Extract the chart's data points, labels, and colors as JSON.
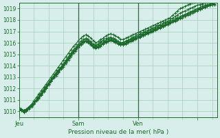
{
  "xlabel": "Pression niveau de la mer( hPa )",
  "ylim": [
    1009.5,
    1019.5
  ],
  "xlim": [
    0,
    80
  ],
  "ytick_positions": [
    1010,
    1011,
    1012,
    1013,
    1014,
    1015,
    1016,
    1017,
    1018,
    1019
  ],
  "xtick_positions": [
    0,
    24,
    48,
    72
  ],
  "xtick_labels": [
    "Jeu",
    "Sam",
    "Ven",
    ""
  ],
  "day_lines": [
    24,
    48
  ],
  "bg_color": "#d8eeea",
  "grid_color": "#a8ccbb",
  "line_color": "#1a6b2a",
  "line_width": 0.8,
  "marker_size": 2.5,
  "series": [
    [
      1010.2,
      1010.1,
      1010.0,
      1010.1,
      1010.3,
      1010.5,
      1010.7,
      1011.0,
      1011.3,
      1011.6,
      1011.9,
      1012.2,
      1012.5,
      1012.7,
      1013.0,
      1013.3,
      1013.6,
      1013.8,
      1014.1,
      1014.4,
      1014.7,
      1015.0,
      1015.3,
      1015.5,
      1015.8,
      1016.0,
      1016.2,
      1016.3,
      1016.2,
      1016.0,
      1015.8,
      1015.7,
      1015.8,
      1016.0,
      1016.1,
      1016.2,
      1016.3,
      1016.4,
      1016.3,
      1016.2,
      1016.1,
      1016.0,
      1016.0,
      1016.1,
      1016.2,
      1016.3,
      1016.4,
      1016.5,
      1016.6,
      1016.7,
      1016.8,
      1016.9,
      1017.0,
      1017.1,
      1017.2,
      1017.3,
      1017.4,
      1017.5,
      1017.6,
      1017.7,
      1017.8,
      1017.9,
      1018.0,
      1018.1,
      1018.2,
      1018.3,
      1018.4,
      1018.5,
      1018.6,
      1018.7,
      1018.8,
      1018.9,
      1019.0,
      1019.1,
      1019.2,
      1019.3,
      1019.35,
      1019.4,
      1019.45,
      1019.5
    ],
    [
      1010.2,
      1010.1,
      1010.0,
      1010.1,
      1010.3,
      1010.5,
      1010.7,
      1011.0,
      1011.2,
      1011.5,
      1011.8,
      1012.1,
      1012.4,
      1012.7,
      1013.0,
      1013.2,
      1013.5,
      1013.8,
      1014.0,
      1014.3,
      1014.6,
      1014.9,
      1015.2,
      1015.4,
      1015.7,
      1015.9,
      1016.1,
      1016.2,
      1016.1,
      1015.9,
      1015.7,
      1015.6,
      1015.7,
      1015.8,
      1016.0,
      1016.1,
      1016.2,
      1016.3,
      1016.2,
      1016.1,
      1016.0,
      1015.9,
      1015.9,
      1016.0,
      1016.1,
      1016.2,
      1016.3,
      1016.4,
      1016.5,
      1016.6,
      1016.7,
      1016.8,
      1016.9,
      1017.0,
      1017.1,
      1017.2,
      1017.3,
      1017.4,
      1017.5,
      1017.6,
      1017.7,
      1017.8,
      1017.9,
      1018.0,
      1018.1,
      1018.2,
      1018.3,
      1018.4,
      1018.5,
      1018.6,
      1018.7,
      1018.8,
      1018.9,
      1019.0,
      1019.1,
      1019.2,
      1019.25,
      1019.3,
      1019.35,
      1019.4
    ],
    [
      1010.1,
      1010.05,
      1009.9,
      1010.0,
      1010.2,
      1010.4,
      1010.6,
      1010.9,
      1011.1,
      1011.4,
      1011.7,
      1012.0,
      1012.3,
      1012.6,
      1012.9,
      1013.1,
      1013.4,
      1013.7,
      1013.9,
      1014.2,
      1014.5,
      1014.8,
      1015.1,
      1015.3,
      1015.6,
      1015.8,
      1016.0,
      1016.1,
      1016.0,
      1015.8,
      1015.6,
      1015.5,
      1015.6,
      1015.7,
      1015.9,
      1016.0,
      1016.1,
      1016.2,
      1016.1,
      1016.0,
      1015.9,
      1015.8,
      1015.8,
      1015.9,
      1016.0,
      1016.1,
      1016.2,
      1016.3,
      1016.4,
      1016.5,
      1016.6,
      1016.7,
      1016.8,
      1016.9,
      1017.0,
      1017.1,
      1017.2,
      1017.3,
      1017.4,
      1017.5,
      1017.6,
      1017.7,
      1017.8,
      1017.9,
      1018.0,
      1018.1,
      1018.2,
      1018.3,
      1018.4,
      1018.5,
      1018.6,
      1018.7,
      1018.8,
      1018.9,
      1019.0,
      1019.1,
      1019.2,
      1019.25,
      1019.3,
      1019.35
    ],
    [
      1010.2,
      1010.1,
      1010.05,
      1010.15,
      1010.3,
      1010.5,
      1010.75,
      1011.0,
      1011.3,
      1011.6,
      1011.9,
      1012.2,
      1012.5,
      1012.8,
      1013.1,
      1013.4,
      1013.65,
      1013.9,
      1014.2,
      1014.5,
      1014.8,
      1015.1,
      1015.4,
      1015.6,
      1015.9,
      1016.15,
      1016.3,
      1016.4,
      1016.3,
      1016.1,
      1015.9,
      1015.8,
      1015.9,
      1016.1,
      1016.25,
      1016.35,
      1016.45,
      1016.5,
      1016.4,
      1016.3,
      1016.15,
      1016.0,
      1016.05,
      1016.15,
      1016.25,
      1016.35,
      1016.5,
      1016.6,
      1016.7,
      1016.8,
      1016.9,
      1017.0,
      1017.1,
      1017.2,
      1017.3,
      1017.4,
      1017.5,
      1017.6,
      1017.7,
      1017.8,
      1017.9,
      1018.0,
      1018.15,
      1018.3,
      1018.45,
      1018.6,
      1018.7,
      1018.8,
      1018.9,
      1019.0,
      1019.1,
      1019.2,
      1019.3,
      1019.35,
      1019.4,
      1019.5,
      1019.55,
      1019.6,
      1019.65,
      1019.7
    ],
    [
      1010.15,
      1010.05,
      1009.95,
      1010.05,
      1010.25,
      1010.45,
      1010.65,
      1010.95,
      1011.15,
      1011.45,
      1011.75,
      1012.05,
      1012.35,
      1012.65,
      1012.95,
      1013.2,
      1013.45,
      1013.75,
      1014.0,
      1014.3,
      1014.6,
      1014.9,
      1015.2,
      1015.4,
      1015.65,
      1015.9,
      1016.05,
      1016.15,
      1016.05,
      1015.85,
      1015.65,
      1015.55,
      1015.65,
      1015.8,
      1015.95,
      1016.05,
      1016.15,
      1016.25,
      1016.15,
      1016.05,
      1015.95,
      1015.85,
      1015.85,
      1015.95,
      1016.05,
      1016.15,
      1016.25,
      1016.35,
      1016.45,
      1016.55,
      1016.65,
      1016.75,
      1016.85,
      1016.95,
      1017.05,
      1017.15,
      1017.25,
      1017.35,
      1017.45,
      1017.55,
      1017.65,
      1017.75,
      1017.85,
      1017.95,
      1018.1,
      1018.2,
      1018.3,
      1018.4,
      1018.5,
      1018.6,
      1018.7,
      1018.8,
      1018.9,
      1018.95,
      1019.05,
      1019.15,
      1019.2,
      1019.25,
      1019.3,
      1019.35
    ],
    [
      1010.3,
      1010.2,
      1010.1,
      1010.2,
      1010.4,
      1010.6,
      1010.9,
      1011.2,
      1011.5,
      1011.8,
      1012.1,
      1012.4,
      1012.7,
      1013.0,
      1013.3,
      1013.6,
      1013.9,
      1014.2,
      1014.5,
      1014.8,
      1015.1,
      1015.4,
      1015.7,
      1015.9,
      1016.2,
      1016.4,
      1016.6,
      1016.7,
      1016.6,
      1016.4,
      1016.2,
      1016.0,
      1016.1,
      1016.3,
      1016.4,
      1016.6,
      1016.7,
      1016.8,
      1016.7,
      1016.6,
      1016.5,
      1016.3,
      1016.3,
      1016.4,
      1016.5,
      1016.6,
      1016.7,
      1016.8,
      1016.9,
      1017.0,
      1017.1,
      1017.2,
      1017.3,
      1017.4,
      1017.5,
      1017.6,
      1017.7,
      1017.8,
      1017.9,
      1018.0,
      1018.1,
      1018.2,
      1018.4,
      1018.6,
      1018.8,
      1019.0,
      1019.1,
      1019.2,
      1019.3,
      1019.4,
      1019.5,
      1019.6,
      1019.65,
      1019.7,
      1019.72,
      1019.75,
      1019.78,
      1019.8,
      1019.82,
      1019.85
    ]
  ]
}
